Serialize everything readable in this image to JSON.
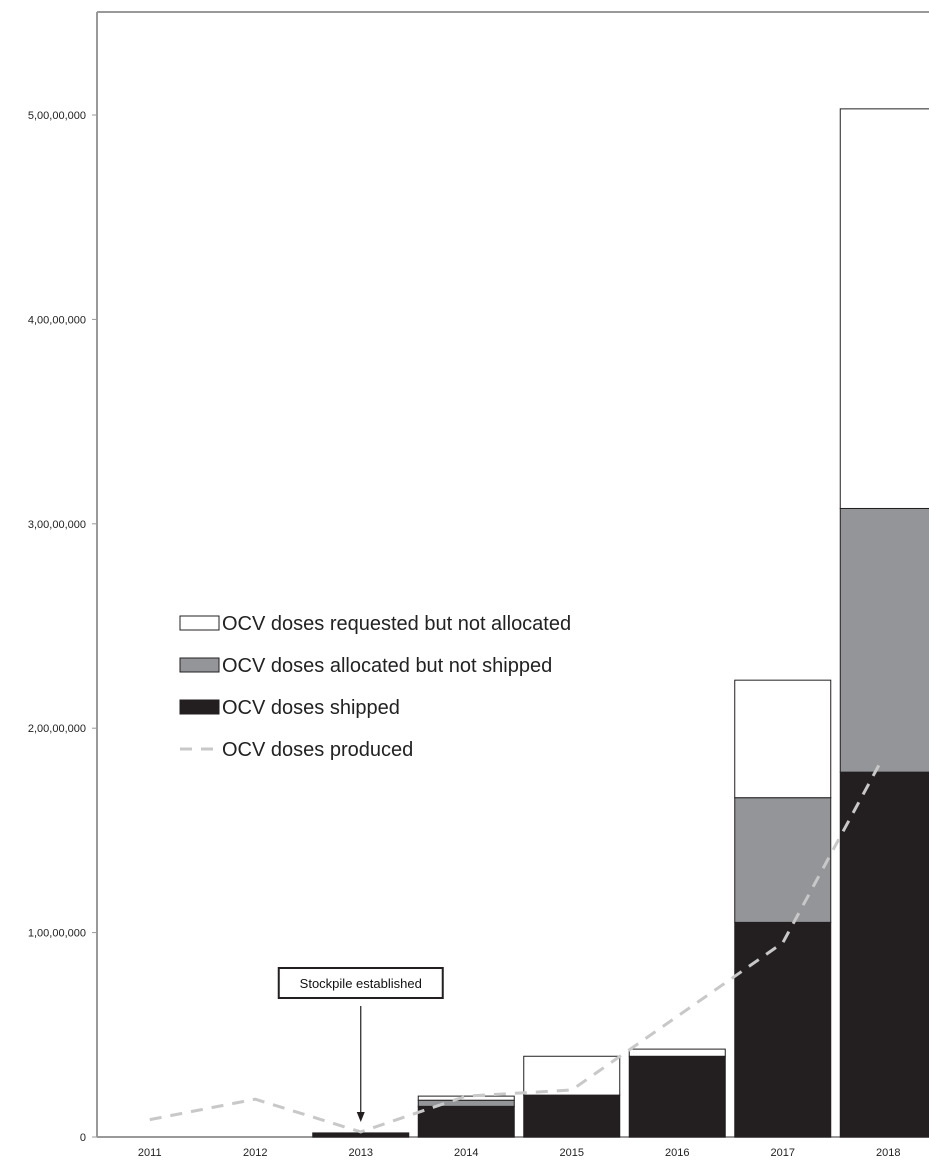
{
  "chart_data": {
    "type": "bar",
    "stacked": true,
    "title": "",
    "xlabel": "",
    "ylabel": "",
    "ylim": [
      0,
      55000000
    ],
    "grid": false,
    "legend_position": "left-middle",
    "categories": [
      "2011",
      "2012",
      "2013",
      "2014",
      "2015",
      "2016",
      "2017",
      "2018"
    ],
    "y_ticks": [
      {
        "value": 0,
        "label": "0"
      },
      {
        "value": 10000000,
        "label": "1,00,00,000"
      },
      {
        "value": 20000000,
        "label": "2,00,00,000"
      },
      {
        "value": 30000000,
        "label": "3,00,00,000"
      },
      {
        "value": 40000000,
        "label": "4,00,00,000"
      },
      {
        "value": 50000000,
        "label": "5,00,00,000"
      }
    ],
    "series": [
      {
        "name": "OCV doses shipped",
        "type": "bar",
        "color": "#231f20",
        "values": [
          0,
          0,
          200000,
          1500000,
          2050000,
          3950000,
          10500000,
          17850000
        ]
      },
      {
        "name": "OCV doses allocated but not shipped",
        "type": "bar",
        "color": "#939598",
        "values": [
          0,
          0,
          0,
          300000,
          0,
          0,
          6100000,
          12900000
        ]
      },
      {
        "name": "OCV doses requested but not allocated",
        "type": "bar",
        "color": "#ffffff",
        "values": [
          0,
          0,
          0,
          200000,
          1900000,
          350000,
          5750000,
          19550000
        ]
      },
      {
        "name": "OCV doses produced",
        "type": "line",
        "style": "dashed",
        "color": "#c8c8c8",
        "values": [
          850000,
          1850000,
          250000,
          2000000,
          2300000,
          null,
          9500000,
          18200000
        ]
      }
    ],
    "legend": [
      {
        "name": "OCV doses requested but not allocated",
        "swatch": "box",
        "color": "#ffffff"
      },
      {
        "name": "OCV doses allocated but not shipped",
        "swatch": "box",
        "color": "#939598"
      },
      {
        "name": "OCV doses shipped",
        "swatch": "box",
        "color": "#231f20"
      },
      {
        "name": "OCV doses produced",
        "swatch": "dash",
        "color": "#c8c8c8"
      }
    ],
    "annotations": [
      {
        "text": "Stockpile established",
        "target_category": "2013"
      }
    ]
  }
}
